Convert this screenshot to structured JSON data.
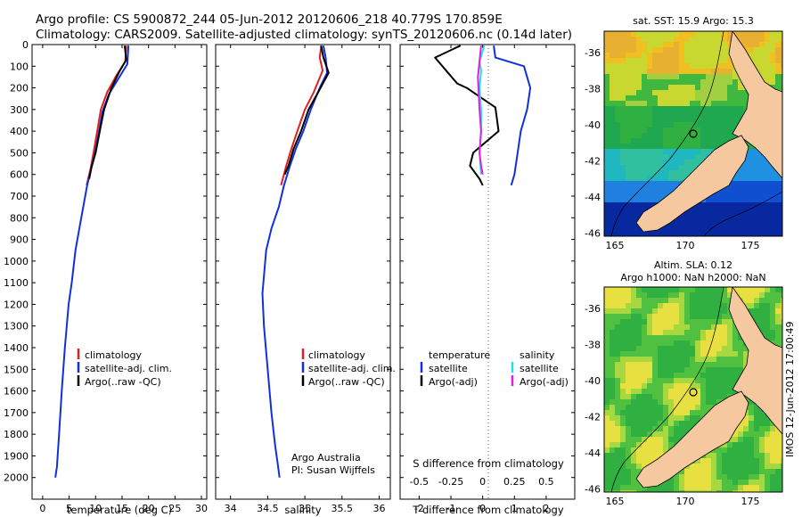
{
  "header": {
    "line1": "Argo profile: CS 5900872_244 05-Jun-2012 20120606_218 40.779S 170.859E",
    "line2": "Climatology: CARS2009. Satellite-adjusted climatology: synTS_20120606.nc (0.14d later)"
  },
  "colors": {
    "climatology": "#e02020",
    "satellite": "#1030e0",
    "argo": "#000000",
    "sat_salinity": "#20e0e0",
    "argo_salinity_adj": "#e020e0",
    "land": "#f5c8a0"
  },
  "chart_data": [
    {
      "type": "line",
      "name": "temperature-profile",
      "xlabel": "temperature (deg C)",
      "ylabel": "",
      "xlim": [
        -2,
        31
      ],
      "ylim": [
        2100,
        0
      ],
      "xticks": [
        "0",
        "5",
        "10",
        "15",
        "20",
        "25",
        "30"
      ],
      "yticks": [
        "0",
        "100",
        "200",
        "300",
        "400",
        "500",
        "600",
        "700",
        "800",
        "900",
        "1000",
        "1100",
        "1200",
        "1300",
        "1400",
        "1500",
        "1600",
        "1700",
        "1800",
        "1900",
        "2000"
      ],
      "legend": [
        "climatology",
        "satellite-adj. clim.",
        "Argo(..raw -QC)"
      ],
      "series": [
        {
          "name": "climatology",
          "color": "#e02020",
          "x": [
            15.8,
            15.6,
            14,
            12.2,
            11,
            10.3,
            9.6,
            9,
            8.3
          ],
          "y": [
            5,
            80,
            140,
            220,
            300,
            400,
            500,
            580,
            650
          ]
        },
        {
          "name": "satellite-adj. clim.",
          "color": "#1030e0",
          "x": [
            16.2,
            16,
            14.5,
            12.5,
            11.3,
            10.6,
            9.9,
            9.2,
            8.4,
            7.3,
            6.2,
            5.5,
            4.9,
            4.2,
            3.6,
            3.1,
            2.7,
            2.4
          ],
          "y": [
            5,
            90,
            150,
            230,
            310,
            410,
            500,
            570,
            650,
            800,
            950,
            1100,
            1200,
            1400,
            1600,
            1800,
            1950,
            2000
          ]
        },
        {
          "name": "Argo(..raw -QC)",
          "color": "#000000",
          "x": [
            15.5,
            15.8,
            14.6,
            13,
            11.6,
            10.8,
            10,
            9.2,
            8.8
          ],
          "y": [
            5,
            70,
            120,
            200,
            300,
            400,
            500,
            570,
            620
          ]
        }
      ]
    },
    {
      "type": "line",
      "name": "salinity-profile",
      "xlabel": "salinity",
      "xlim": [
        33.8,
        36.15
      ],
      "ylim": [
        2100,
        0
      ],
      "xticks": [
        "34",
        "34.5",
        "35",
        "35.5",
        "36"
      ],
      "legend": [
        "climatology",
        "satellite-adj. clim.",
        "Argo(..raw -QC)"
      ],
      "annotation": [
        "Argo Australia",
        "PI: Susan Wijffels"
      ],
      "series": [
        {
          "name": "climatology",
          "color": "#e02020",
          "x": [
            35.22,
            35.2,
            35.24,
            35.12,
            35.0,
            34.9,
            34.82,
            34.75,
            34.68
          ],
          "y": [
            5,
            60,
            120,
            220,
            300,
            400,
            480,
            560,
            650
          ]
        },
        {
          "name": "satellite-adj. clim.",
          "color": "#1030e0",
          "x": [
            35.25,
            35.28,
            35.3,
            35.2,
            35.08,
            34.98,
            34.88,
            34.8,
            34.72,
            34.65,
            34.55,
            34.48,
            34.43,
            34.45,
            34.5,
            34.55,
            34.6,
            34.64,
            34.66
          ],
          "y": [
            5,
            60,
            130,
            200,
            300,
            400,
            480,
            560,
            650,
            750,
            850,
            950,
            1150,
            1300,
            1500,
            1700,
            1850,
            1950,
            2000
          ]
        },
        {
          "name": "Argo(..raw -QC)",
          "color": "#000000",
          "x": [
            35.22,
            35.25,
            35.32,
            35.18,
            35.05,
            34.95,
            34.85,
            34.78,
            34.73
          ],
          "y": [
            5,
            60,
            130,
            220,
            300,
            400,
            480,
            560,
            600
          ]
        }
      ]
    },
    {
      "type": "line",
      "name": "difference-profile",
      "xlabel": "T difference from climatology",
      "xlabel2": "S difference from climatology",
      "xlim": [
        -2.6,
        2.9
      ],
      "ylim": [
        2100,
        0
      ],
      "xticks": [
        "-2",
        "-1",
        "0",
        "1",
        "2"
      ],
      "xticks2": [
        "-0.5",
        "-0.25",
        "0",
        "0.25",
        "0.5"
      ],
      "legend_temperature": "temperature",
      "legend_salinity": "salinity",
      "legend_items": [
        "satellite",
        "Argo(-adj)",
        "satellite",
        "Argo(-adj)"
      ],
      "series": [
        {
          "name": "temperature satellite",
          "color": "#1030e0",
          "x": [
            0.35,
            0.4,
            1.3,
            1.5,
            1.4,
            1.2,
            1.1,
            1.0,
            0.9
          ],
          "y": [
            5,
            60,
            100,
            200,
            300,
            400,
            500,
            600,
            650
          ]
        },
        {
          "name": "temperature Argo(-adj)",
          "color": "#000000",
          "x": [
            -0.7,
            -1.5,
            -0.8,
            -0.5,
            -0.2,
            0.4,
            0.5,
            -0.3,
            -0.4,
            -0.1,
            0
          ],
          "y": [
            5,
            60,
            180,
            200,
            230,
            290,
            400,
            500,
            560,
            620,
            650
          ]
        },
        {
          "name": "salinity satellite",
          "color": "#20e0e0",
          "x": [
            0.05,
            -0.1,
            -0.05,
            -0.1,
            -0.05,
            -0.05,
            -0.1,
            -0.05
          ],
          "y": [
            5,
            80,
            120,
            200,
            300,
            400,
            500,
            600
          ]
        },
        {
          "name": "salinity Argo(-adj)",
          "color": "#e020e0",
          "x": [
            -0.05,
            -0.15,
            -0.1,
            -0.05,
            -0.1,
            -0.05,
            0
          ],
          "y": [
            5,
            150,
            300,
            400,
            500,
            560,
            600
          ]
        }
      ]
    },
    {
      "type": "heatmap",
      "name": "sst-map",
      "title": "sat. SST: 15.9 Argo: 15.3",
      "xticks": [
        "165",
        "170",
        "175"
      ],
      "yticks": [
        "-36",
        "-38",
        "-40",
        "-42",
        "-44",
        "-46"
      ]
    },
    {
      "type": "heatmap",
      "name": "sla-map",
      "title": "Altim. SLA: 0.12",
      "subtitle": "Argo h1000: NaN h2000: NaN",
      "xticks": [
        "165",
        "170",
        "175"
      ],
      "yticks": [
        "-36",
        "-38",
        "-40",
        "-42",
        "-44",
        "-46"
      ]
    }
  ],
  "footer": {
    "stamp": "IMOS 12-Jun-2012 17:00:49"
  }
}
